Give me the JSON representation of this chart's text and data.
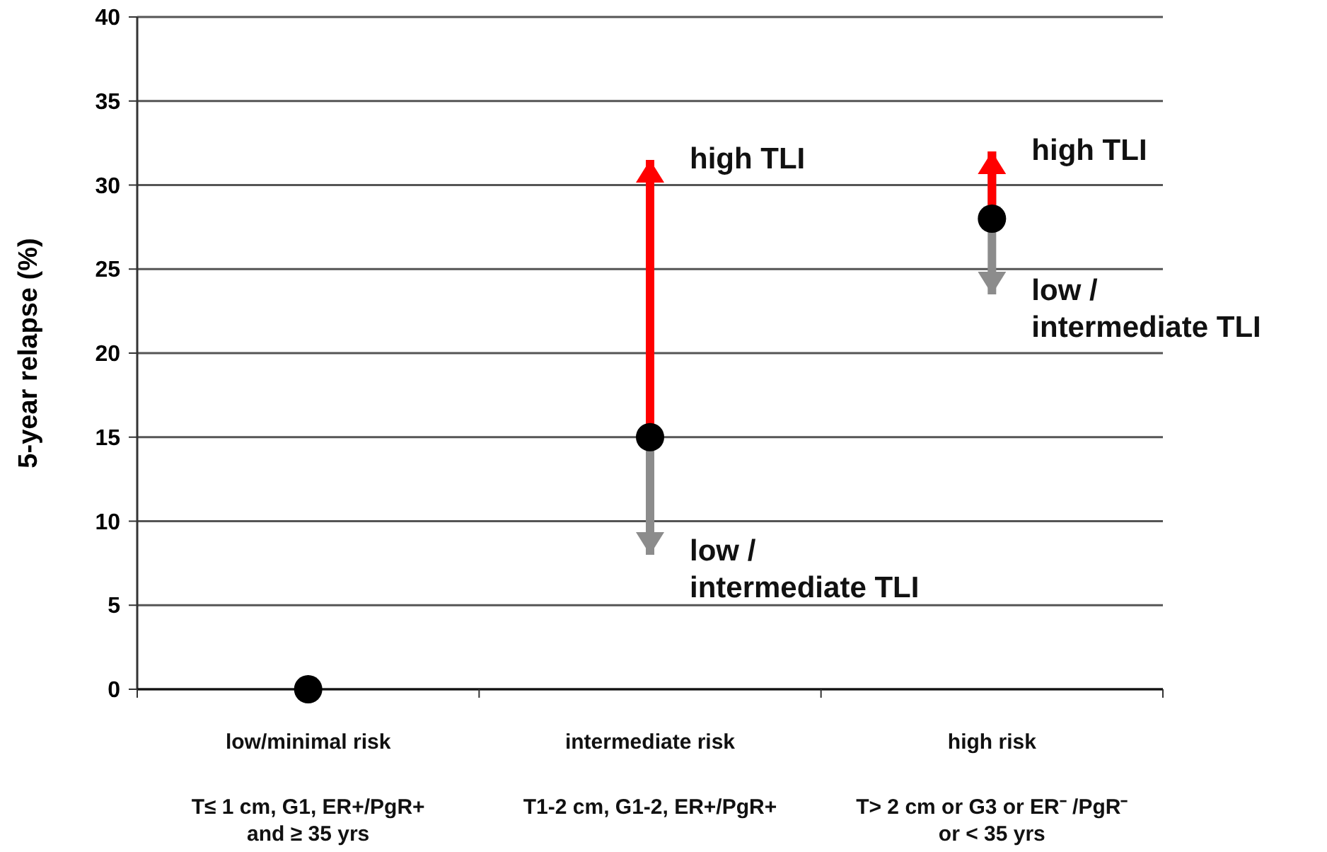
{
  "chart_data": {
    "type": "scatter",
    "ylabel": "5-year relapse (%)",
    "categories": [
      "low/minimal risk\nT≤ 1 cm, G1, ER+/PgR+\nand ≥ 35 yrs",
      "intermediate risk\nT1-2 cm, G1-2, ER+/PgR+",
      "high risk\nT> 2 cm or G3 or ER⁻ /PgR⁻\nor < 35 yrs"
    ],
    "series": [
      {
        "color": "#000000",
        "values": [
          0,
          15,
          28
        ],
        "errors": [
          null,
          [
            8,
            31.5
          ],
          [
            23.5,
            32
          ]
        ]
      }
    ],
    "ylim": [
      0,
      40
    ],
    "yticks": [
      0,
      5,
      10,
      15,
      20,
      25,
      30,
      35,
      40
    ],
    "grid": "y",
    "marker": "circle",
    "annotations": [
      "high TLI",
      "low /\nintermediate TLI",
      "high TLI",
      "low /\nintermediate TLI"
    ]
  }
}
